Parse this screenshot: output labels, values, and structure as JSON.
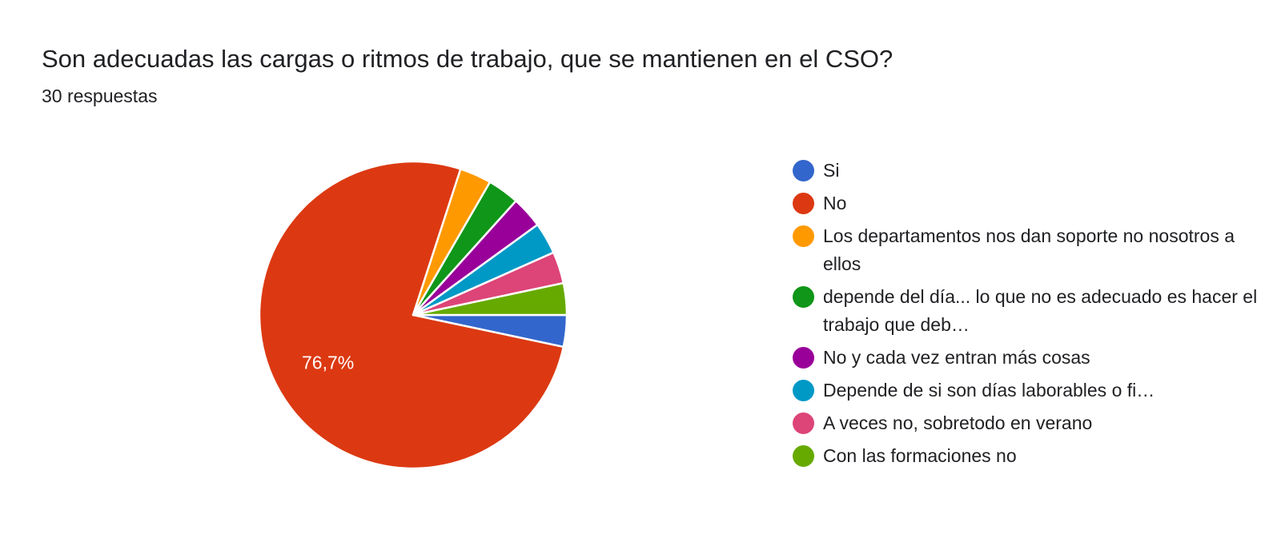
{
  "chart_data": {
    "type": "pie",
    "title": "Son adecuadas las cargas o ritmos de trabajo, que se mantienen en el CSO?",
    "subtitle": "30 respuestas",
    "total_responses": 30,
    "legend_position": "right",
    "slices": [
      {
        "label": "Si",
        "count": 1,
        "percent": 3.3,
        "color": "#3366cc",
        "data_label": ""
      },
      {
        "label": "No",
        "count": 23,
        "percent": 76.7,
        "color": "#dc3912",
        "data_label": "76,7%"
      },
      {
        "label": "Los departamentos nos dan soporte no nosotros a ellos",
        "count": 1,
        "percent": 3.3,
        "color": "#ff9900",
        "data_label": ""
      },
      {
        "label": "depende del día... lo que no es adecuado es hacer el trabajo que deb…",
        "count": 1,
        "percent": 3.3,
        "color": "#109618",
        "data_label": ""
      },
      {
        "label": "No y cada vez entran más cosas",
        "count": 1,
        "percent": 3.3,
        "color": "#990099",
        "data_label": ""
      },
      {
        "label": "Depende de si son días laborables o fi…",
        "count": 1,
        "percent": 3.3,
        "color": "#0099c6",
        "data_label": ""
      },
      {
        "label": "A veces no, sobretodo en verano",
        "count": 1,
        "percent": 3.3,
        "color": "#dd4477",
        "data_label": ""
      },
      {
        "label": "Con las formaciones no",
        "count": 1,
        "percent": 3.3,
        "color": "#66aa00",
        "data_label": ""
      }
    ]
  }
}
